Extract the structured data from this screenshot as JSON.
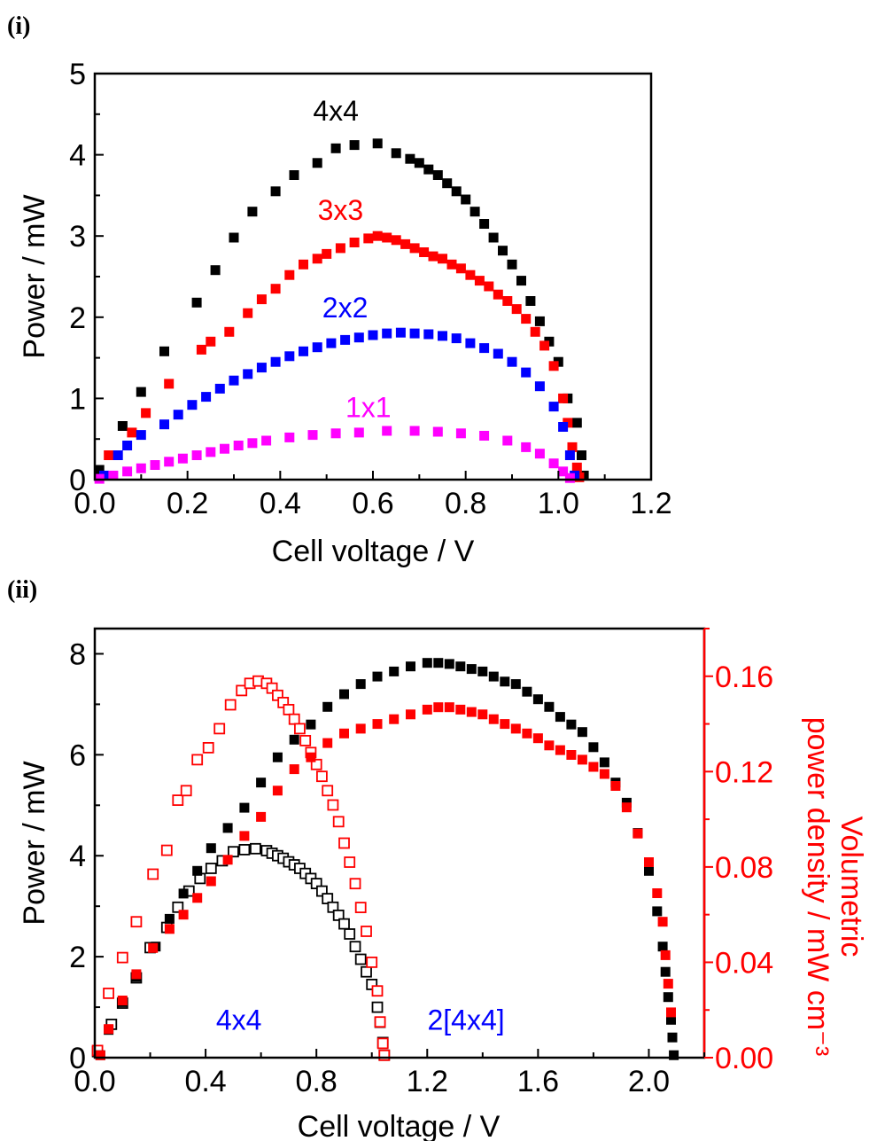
{
  "chart_data": [
    {
      "panel_label": "(i)",
      "type": "scatter",
      "xlabel": "Cell voltage / V",
      "ylabel": "Power / mW",
      "xlim": [
        0.0,
        1.2
      ],
      "ylim": [
        0,
        5
      ],
      "xticks": [
        "0.0",
        "0.2",
        "0.4",
        "0.6",
        "0.8",
        "1.0",
        "1.2"
      ],
      "yticks": [
        "0",
        "1",
        "2",
        "3",
        "4",
        "5"
      ],
      "grid": false,
      "series": [
        {
          "name": "4x4",
          "color": "#000000",
          "marker": "filled-square",
          "x": [
            0.01,
            0.06,
            0.1,
            0.15,
            0.22,
            0.26,
            0.3,
            0.34,
            0.39,
            0.43,
            0.48,
            0.52,
            0.56,
            0.61,
            0.65,
            0.68,
            0.7,
            0.72,
            0.74,
            0.76,
            0.78,
            0.8,
            0.82,
            0.84,
            0.86,
            0.88,
            0.9,
            0.92,
            0.94,
            0.96,
            0.98,
            1.0,
            1.02,
            1.04,
            1.05,
            1.055
          ],
          "y": [
            0.12,
            0.66,
            1.08,
            1.58,
            2.18,
            2.58,
            2.98,
            3.3,
            3.55,
            3.75,
            3.9,
            4.08,
            4.12,
            4.14,
            4.02,
            3.95,
            3.9,
            3.82,
            3.75,
            3.65,
            3.55,
            3.45,
            3.3,
            3.15,
            2.98,
            2.82,
            2.65,
            2.45,
            2.2,
            1.95,
            1.7,
            1.45,
            1.0,
            0.7,
            0.3,
            0.05
          ]
        },
        {
          "name": "3x3",
          "color": "#ff0000",
          "marker": "filled-square",
          "x": [
            0.03,
            0.08,
            0.11,
            0.16,
            0.23,
            0.25,
            0.29,
            0.33,
            0.36,
            0.39,
            0.42,
            0.45,
            0.48,
            0.5,
            0.53,
            0.56,
            0.59,
            0.61,
            0.63,
            0.65,
            0.67,
            0.69,
            0.71,
            0.73,
            0.75,
            0.77,
            0.79,
            0.81,
            0.83,
            0.85,
            0.87,
            0.89,
            0.91,
            0.93,
            0.95,
            0.97,
            0.99,
            1.01,
            1.02,
            1.03,
            1.04,
            1.045
          ],
          "y": [
            0.3,
            0.58,
            0.82,
            1.18,
            1.6,
            1.7,
            1.82,
            2.05,
            2.22,
            2.35,
            2.52,
            2.65,
            2.72,
            2.78,
            2.85,
            2.92,
            2.97,
            3.0,
            2.98,
            2.95,
            2.9,
            2.85,
            2.8,
            2.75,
            2.72,
            2.65,
            2.6,
            2.52,
            2.45,
            2.38,
            2.28,
            2.2,
            2.1,
            1.98,
            1.82,
            1.65,
            1.4,
            1.0,
            0.7,
            0.4,
            0.15,
            0.03
          ]
        },
        {
          "name": "2x2",
          "color": "#0000ff",
          "marker": "filled-square",
          "x": [
            0.02,
            0.05,
            0.07,
            0.1,
            0.15,
            0.18,
            0.21,
            0.24,
            0.27,
            0.3,
            0.33,
            0.36,
            0.39,
            0.42,
            0.45,
            0.48,
            0.51,
            0.54,
            0.57,
            0.6,
            0.63,
            0.66,
            0.69,
            0.72,
            0.75,
            0.78,
            0.81,
            0.84,
            0.87,
            0.9,
            0.93,
            0.96,
            0.99,
            1.01,
            1.025,
            1.035
          ],
          "y": [
            0.05,
            0.3,
            0.42,
            0.55,
            0.68,
            0.8,
            0.92,
            1.02,
            1.12,
            1.22,
            1.3,
            1.38,
            1.45,
            1.52,
            1.58,
            1.63,
            1.68,
            1.72,
            1.75,
            1.78,
            1.8,
            1.81,
            1.8,
            1.79,
            1.77,
            1.74,
            1.68,
            1.62,
            1.55,
            1.45,
            1.32,
            1.15,
            0.9,
            0.65,
            0.3,
            0.05
          ]
        },
        {
          "name": "1x1",
          "color": "#ff00ff",
          "marker": "filled-square",
          "x": [
            0.01,
            0.04,
            0.07,
            0.1,
            0.13,
            0.16,
            0.19,
            0.22,
            0.25,
            0.28,
            0.31,
            0.34,
            0.37,
            0.42,
            0.47,
            0.52,
            0.57,
            0.63,
            0.69,
            0.74,
            0.79,
            0.84,
            0.89,
            0.93,
            0.96,
            0.99,
            1.01,
            1.025
          ],
          "y": [
            0.01,
            0.05,
            0.1,
            0.14,
            0.18,
            0.22,
            0.26,
            0.3,
            0.34,
            0.38,
            0.42,
            0.45,
            0.48,
            0.52,
            0.55,
            0.57,
            0.58,
            0.6,
            0.6,
            0.59,
            0.57,
            0.54,
            0.48,
            0.4,
            0.32,
            0.2,
            0.1,
            0.02
          ]
        }
      ],
      "annotations": [
        {
          "text": "4x4",
          "color": "#000000",
          "x": 0.52,
          "y": 4.42
        },
        {
          "text": "3x3",
          "color": "#ff0000",
          "x": 0.53,
          "y": 3.2
        },
        {
          "text": "2x2",
          "color": "#0000ff",
          "x": 0.54,
          "y": 2.0
        },
        {
          "text": "1x1",
          "color": "#ff00ff",
          "x": 0.59,
          "y": 0.77
        }
      ]
    },
    {
      "panel_label": "(ii)",
      "type": "scatter",
      "xlabel": "Cell voltage / V",
      "ylabel": "Power / mW",
      "ylabel_right": [
        "Volumetric",
        "power density / mW cm⁻³"
      ],
      "xlim": [
        0.0,
        2.2
      ],
      "ylim": [
        0,
        8.5
      ],
      "ylim_right": [
        0.0,
        0.18
      ],
      "xticks": [
        "0.0",
        "0.4",
        "0.8",
        "1.2",
        "1.6",
        "2.0"
      ],
      "yticks": [
        "0",
        "2",
        "4",
        "6",
        "8"
      ],
      "yticks_right": [
        "0.00",
        "0.04",
        "0.08",
        "0.12",
        "0.16"
      ],
      "right_axis_color": "#ff0000",
      "grid": false,
      "series": [
        {
          "name": "4x4 power",
          "axis": "left",
          "color": "#000000",
          "marker": "open-square",
          "x": [
            0.01,
            0.06,
            0.1,
            0.15,
            0.2,
            0.26,
            0.3,
            0.34,
            0.38,
            0.42,
            0.46,
            0.5,
            0.54,
            0.58,
            0.62,
            0.64,
            0.66,
            0.68,
            0.7,
            0.72,
            0.74,
            0.76,
            0.78,
            0.8,
            0.82,
            0.84,
            0.86,
            0.88,
            0.9,
            0.92,
            0.94,
            0.96,
            0.98,
            1.0,
            1.02,
            1.03,
            1.04,
            1.045
          ],
          "y": [
            0.12,
            0.66,
            1.08,
            1.58,
            2.18,
            2.58,
            2.98,
            3.3,
            3.55,
            3.75,
            3.9,
            4.08,
            4.12,
            4.14,
            4.1,
            4.05,
            4.0,
            3.95,
            3.88,
            3.82,
            3.75,
            3.65,
            3.55,
            3.45,
            3.3,
            3.15,
            2.98,
            2.82,
            2.65,
            2.45,
            2.2,
            1.95,
            1.7,
            1.45,
            1.0,
            0.7,
            0.3,
            0.05
          ]
        },
        {
          "name": "4x4 volumetric power density",
          "axis": "right",
          "color": "#ff0000",
          "marker": "open-square",
          "x": [
            0.01,
            0.05,
            0.1,
            0.15,
            0.21,
            0.26,
            0.3,
            0.33,
            0.37,
            0.41,
            0.45,
            0.49,
            0.53,
            0.56,
            0.59,
            0.62,
            0.64,
            0.66,
            0.68,
            0.7,
            0.72,
            0.74,
            0.76,
            0.78,
            0.8,
            0.82,
            0.84,
            0.86,
            0.88,
            0.9,
            0.92,
            0.94,
            0.96,
            0.98,
            1.0,
            1.02,
            1.03,
            1.04,
            1.045
          ],
          "y": [
            0.003,
            0.027,
            0.042,
            0.057,
            0.077,
            0.087,
            0.108,
            0.112,
            0.125,
            0.13,
            0.138,
            0.148,
            0.154,
            0.157,
            0.158,
            0.157,
            0.155,
            0.152,
            0.149,
            0.146,
            0.142,
            0.138,
            0.133,
            0.128,
            0.123,
            0.118,
            0.112,
            0.106,
            0.099,
            0.09,
            0.082,
            0.073,
            0.063,
            0.053,
            0.04,
            0.028,
            0.015,
            0.006,
            0.001
          ]
        },
        {
          "name": "2[4x4] power",
          "axis": "left",
          "color": "#000000",
          "marker": "filled-square",
          "x": [
            0.02,
            0.05,
            0.1,
            0.15,
            0.22,
            0.27,
            0.32,
            0.37,
            0.42,
            0.48,
            0.54,
            0.6,
            0.66,
            0.72,
            0.78,
            0.84,
            0.9,
            0.96,
            1.02,
            1.08,
            1.14,
            1.2,
            1.24,
            1.28,
            1.32,
            1.36,
            1.4,
            1.44,
            1.48,
            1.52,
            1.56,
            1.6,
            1.64,
            1.68,
            1.72,
            1.76,
            1.8,
            1.84,
            1.88,
            1.92,
            1.96,
            2.0,
            2.03,
            2.05,
            2.06,
            2.07,
            2.08,
            2.085,
            2.09
          ],
          "y": [
            0.05,
            0.55,
            1.1,
            1.6,
            2.2,
            2.75,
            3.25,
            3.7,
            4.15,
            4.55,
            4.95,
            5.45,
            5.95,
            6.3,
            6.6,
            6.95,
            7.2,
            7.4,
            7.55,
            7.65,
            7.75,
            7.82,
            7.82,
            7.8,
            7.75,
            7.7,
            7.65,
            7.55,
            7.45,
            7.4,
            7.25,
            7.1,
            6.95,
            6.75,
            6.6,
            6.45,
            6.15,
            5.85,
            5.45,
            5.05,
            4.45,
            3.7,
            2.9,
            2.2,
            1.7,
            1.2,
            0.75,
            0.4,
            0.05
          ]
        },
        {
          "name": "2[4x4] volumetric power density",
          "axis": "right",
          "color": "#ff0000",
          "marker": "filled-square",
          "x": [
            0.02,
            0.05,
            0.1,
            0.15,
            0.21,
            0.27,
            0.32,
            0.37,
            0.42,
            0.48,
            0.54,
            0.6,
            0.66,
            0.72,
            0.78,
            0.84,
            0.9,
            0.96,
            1.02,
            1.08,
            1.14,
            1.2,
            1.24,
            1.28,
            1.32,
            1.36,
            1.4,
            1.44,
            1.48,
            1.52,
            1.56,
            1.6,
            1.64,
            1.68,
            1.72,
            1.76,
            1.8,
            1.84,
            1.88,
            1.92,
            1.96,
            2.0,
            2.03,
            2.05,
            2.06,
            2.07,
            2.08
          ],
          "y": [
            0.001,
            0.012,
            0.024,
            0.035,
            0.046,
            0.054,
            0.06,
            0.067,
            0.074,
            0.083,
            0.093,
            0.101,
            0.112,
            0.121,
            0.126,
            0.132,
            0.136,
            0.138,
            0.14,
            0.142,
            0.144,
            0.146,
            0.147,
            0.147,
            0.146,
            0.145,
            0.144,
            0.142,
            0.14,
            0.138,
            0.136,
            0.134,
            0.131,
            0.129,
            0.127,
            0.125,
            0.122,
            0.119,
            0.114,
            0.105,
            0.094,
            0.082,
            0.069,
            0.057,
            0.043,
            0.031,
            0.019
          ]
        }
      ],
      "annotations": [
        {
          "text": "4x4",
          "color": "#0000ff",
          "x": 0.52,
          "y": 0.55
        },
        {
          "text": "2[4x4]",
          "color": "#0000ff",
          "x": 1.34,
          "y": 0.55
        }
      ]
    }
  ]
}
